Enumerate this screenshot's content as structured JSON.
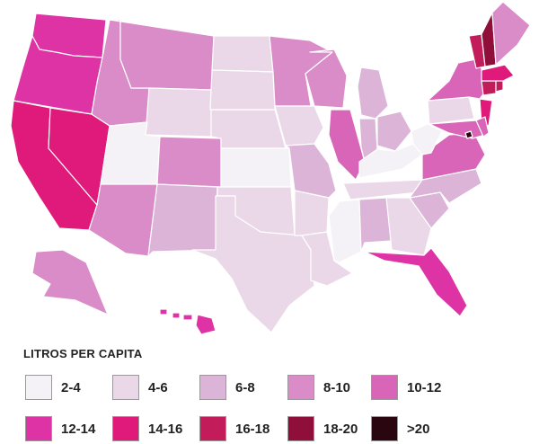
{
  "map": {
    "states": [
      {
        "id": "WA",
        "bin": "12-14"
      },
      {
        "id": "OR",
        "bin": "12-14"
      },
      {
        "id": "CA",
        "bin": "14-16"
      },
      {
        "id": "NV",
        "bin": "14-16"
      },
      {
        "id": "ID",
        "bin": "8-10"
      },
      {
        "id": "MT",
        "bin": "8-10"
      },
      {
        "id": "WY",
        "bin": "4-6"
      },
      {
        "id": "UT",
        "bin": "2-4"
      },
      {
        "id": "AZ",
        "bin": "8-10"
      },
      {
        "id": "CO",
        "bin": "8-10"
      },
      {
        "id": "NM",
        "bin": "6-8"
      },
      {
        "id": "ND",
        "bin": "4-6"
      },
      {
        "id": "SD",
        "bin": "4-6"
      },
      {
        "id": "NE",
        "bin": "4-6"
      },
      {
        "id": "KS",
        "bin": "2-4"
      },
      {
        "id": "OK",
        "bin": "4-6"
      },
      {
        "id": "TX",
        "bin": "4-6"
      },
      {
        "id": "MN",
        "bin": "8-10"
      },
      {
        "id": "IA",
        "bin": "4-6"
      },
      {
        "id": "MO",
        "bin": "6-8"
      },
      {
        "id": "AR",
        "bin": "4-6"
      },
      {
        "id": "LA",
        "bin": "4-6"
      },
      {
        "id": "WI",
        "bin": "8-10"
      },
      {
        "id": "IL",
        "bin": "10-12"
      },
      {
        "id": "MI",
        "bin": "6-8"
      },
      {
        "id": "IN",
        "bin": "6-8"
      },
      {
        "id": "OH",
        "bin": "6-8"
      },
      {
        "id": "KY",
        "bin": "2-4"
      },
      {
        "id": "TN",
        "bin": "4-6"
      },
      {
        "id": "MS",
        "bin": "2-4"
      },
      {
        "id": "AL",
        "bin": "6-8"
      },
      {
        "id": "GA",
        "bin": "4-6"
      },
      {
        "id": "FL",
        "bin": "12-14"
      },
      {
        "id": "SC",
        "bin": "6-8"
      },
      {
        "id": "NC",
        "bin": "6-8"
      },
      {
        "id": "VA",
        "bin": "10-12"
      },
      {
        "id": "WV",
        "bin": "2-4"
      },
      {
        "id": "PA",
        "bin": "4-6"
      },
      {
        "id": "NY",
        "bin": "10-12"
      },
      {
        "id": "NJ",
        "bin": "14-16"
      },
      {
        "id": "MD",
        "bin": "10-12"
      },
      {
        "id": "DE",
        "bin": "10-12"
      },
      {
        "id": "DC",
        "bin": ">20"
      },
      {
        "id": "CT",
        "bin": "16-18"
      },
      {
        "id": "RI",
        "bin": "16-18"
      },
      {
        "id": "MA",
        "bin": "14-16"
      },
      {
        "id": "VT",
        "bin": "16-18"
      },
      {
        "id": "NH",
        "bin": "18-20"
      },
      {
        "id": "ME",
        "bin": "8-10"
      },
      {
        "id": "AK",
        "bin": "8-10"
      },
      {
        "id": "HI",
        "bin": "12-14"
      }
    ]
  },
  "legend": {
    "title": "LITROS PER CAPITA",
    "items": [
      {
        "label": "2-4",
        "color": "#f4f2f6"
      },
      {
        "label": "4-6",
        "color": "#ead8e8"
      },
      {
        "label": "6-8",
        "color": "#dbb4d8"
      },
      {
        "label": "8-10",
        "color": "#d98cc8"
      },
      {
        "label": "10-12",
        "color": "#d865b7"
      },
      {
        "label": "12-14",
        "color": "#de33a5"
      },
      {
        "label": "14-16",
        "color": "#e01a7a"
      },
      {
        "label": "16-18",
        "color": "#c31c5a"
      },
      {
        "label": "18-20",
        "color": "#8f0f3a"
      },
      {
        "label": ">20",
        "color": "#2a0710"
      }
    ]
  }
}
